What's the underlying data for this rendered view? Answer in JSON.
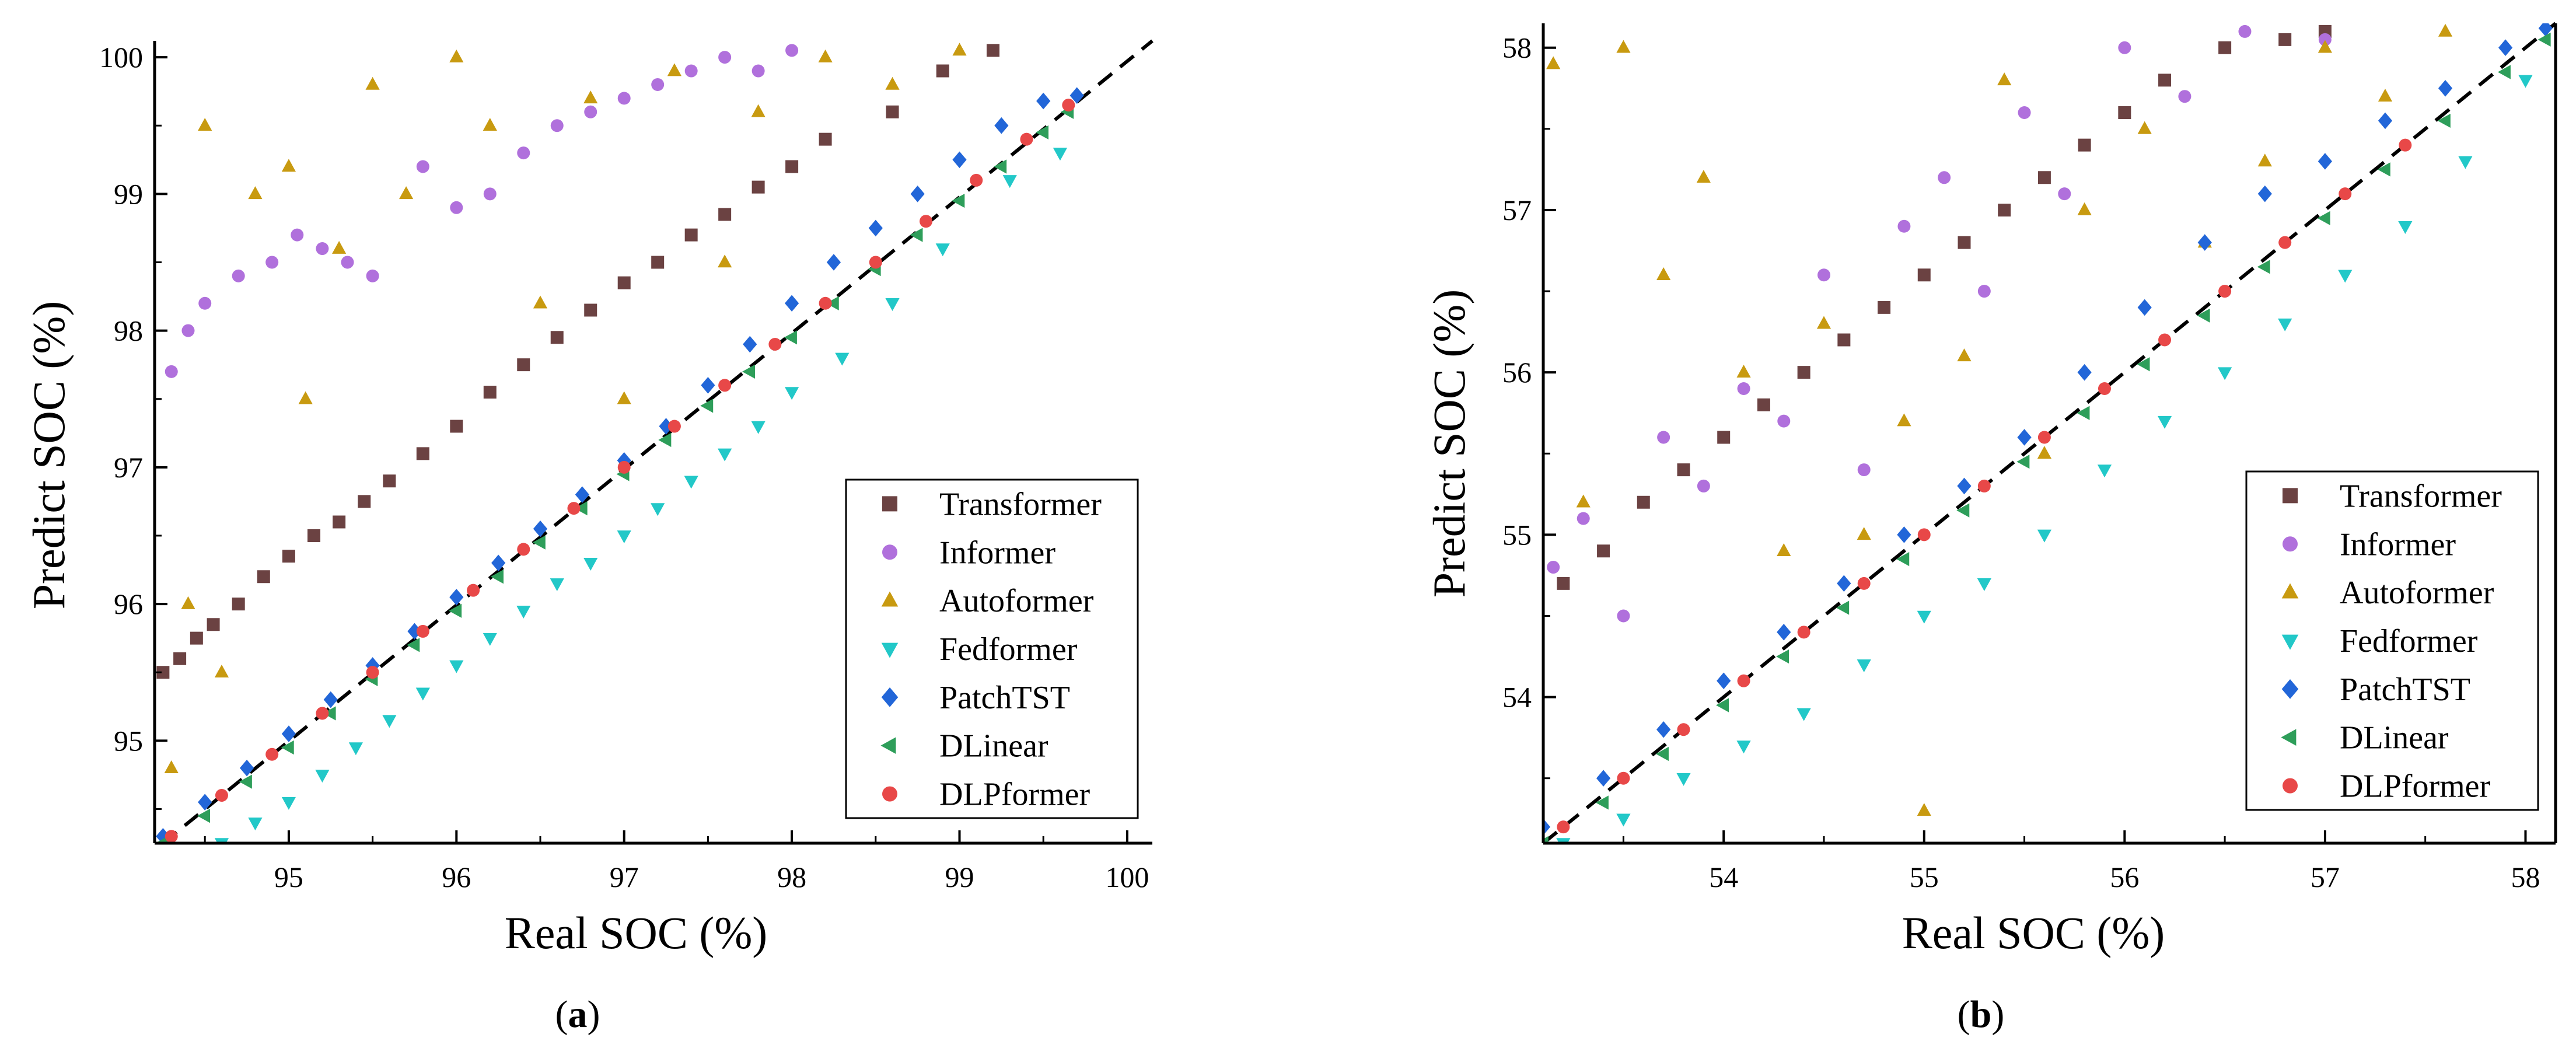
{
  "chart_data": [
    {
      "type": "scatter",
      "panel_label_open": "(",
      "panel_label_letter": "a",
      "panel_label_close": ")",
      "xlabel": "Real SOC (%)",
      "ylabel": "Predict SOC (%)",
      "xlim": [
        94.2,
        100.15
      ],
      "ylim": [
        94.25,
        100.12
      ],
      "xticks": [
        95,
        96,
        97,
        98,
        99,
        100
      ],
      "yticks": [
        95,
        96,
        97,
        98,
        99,
        100
      ],
      "xtick_labels": [
        "95",
        "96",
        "97",
        "98",
        "99",
        "100"
      ],
      "ytick_labels": [
        "95",
        "96",
        "97",
        "98",
        "99",
        "100"
      ],
      "reference_line": "y = x (dashed)",
      "legend_position": "bottom-right",
      "series": [
        {
          "name": "Transformer",
          "marker": "square",
          "color": "#6B4242",
          "x": [
            94.25,
            94.35,
            94.45,
            94.55,
            94.7,
            94.85,
            95.0,
            95.15,
            95.3,
            95.45,
            95.6,
            95.8,
            96.0,
            96.2,
            96.4,
            96.6,
            96.8,
            97.0,
            97.2,
            97.4,
            97.6,
            97.8,
            98.0,
            98.2,
            98.6,
            98.9,
            99.2
          ],
          "y": [
            95.5,
            95.6,
            95.75,
            95.85,
            96.0,
            96.2,
            96.35,
            96.5,
            96.6,
            96.75,
            96.9,
            97.1,
            97.3,
            97.55,
            97.75,
            97.95,
            98.15,
            98.35,
            98.5,
            98.7,
            98.85,
            99.05,
            99.2,
            99.4,
            99.6,
            99.9,
            100.05
          ]
        },
        {
          "name": "Informer",
          "marker": "circle",
          "color": "#B070DC",
          "x": [
            94.3,
            94.4,
            94.5,
            94.7,
            94.9,
            95.05,
            95.2,
            95.35,
            95.5,
            95.8,
            96.0,
            96.2,
            96.4,
            96.6,
            96.8,
            97.0,
            97.2,
            97.4,
            97.6,
            97.8,
            98.0
          ],
          "y": [
            97.7,
            98.0,
            98.2,
            98.4,
            98.5,
            98.7,
            98.6,
            98.5,
            98.4,
            99.2,
            98.9,
            99.0,
            99.3,
            99.5,
            99.6,
            99.7,
            99.8,
            99.9,
            100.0,
            99.9,
            100.05
          ]
        },
        {
          "name": "Autoformer",
          "marker": "triangle-up",
          "color": "#C89A10",
          "x": [
            94.3,
            94.4,
            94.5,
            94.6,
            94.8,
            95.0,
            95.1,
            95.3,
            95.5,
            95.7,
            96.0,
            96.2,
            96.5,
            96.8,
            97.0,
            97.3,
            97.6,
            97.8,
            98.2,
            98.6,
            99.0
          ],
          "y": [
            94.8,
            96.0,
            99.5,
            95.5,
            99.0,
            99.2,
            97.5,
            98.6,
            99.8,
            99.0,
            100.0,
            99.5,
            98.2,
            99.7,
            97.5,
            99.9,
            98.5,
            99.6,
            100.0,
            99.8,
            100.05
          ]
        },
        {
          "name": "Fedformer",
          "marker": "triangle-down",
          "color": "#22C8C8",
          "x": [
            94.6,
            94.8,
            95.0,
            95.2,
            95.4,
            95.6,
            95.8,
            96.0,
            96.2,
            96.4,
            96.6,
            96.8,
            97.0,
            97.2,
            97.4,
            97.6,
            97.8,
            98.0,
            98.3,
            98.6,
            98.9,
            99.3,
            99.6
          ],
          "y": [
            94.25,
            94.4,
            94.55,
            94.75,
            94.95,
            95.15,
            95.35,
            95.55,
            95.75,
            95.95,
            96.15,
            96.3,
            96.5,
            96.7,
            96.9,
            97.1,
            97.3,
            97.55,
            97.8,
            98.2,
            98.6,
            99.1,
            99.3
          ]
        },
        {
          "name": "PatchTST",
          "marker": "diamond",
          "color": "#2266D8",
          "x": [
            94.25,
            94.5,
            94.75,
            95.0,
            95.25,
            95.5,
            95.75,
            96.0,
            96.25,
            96.5,
            96.75,
            97.0,
            97.25,
            97.5,
            97.75,
            98.0,
            98.25,
            98.5,
            98.75,
            99.0,
            99.25,
            99.5,
            99.7
          ],
          "y": [
            94.3,
            94.55,
            94.8,
            95.05,
            95.3,
            95.55,
            95.8,
            96.05,
            96.3,
            96.55,
            96.8,
            97.05,
            97.3,
            97.6,
            97.9,
            98.2,
            98.5,
            98.75,
            99.0,
            99.25,
            99.5,
            99.68,
            99.72
          ]
        },
        {
          "name": "DLinear",
          "marker": "triangle-left",
          "color": "#2E9E5A",
          "x": [
            94.25,
            94.5,
            94.75,
            95.0,
            95.25,
            95.5,
            95.75,
            96.0,
            96.25,
            96.5,
            96.75,
            97.0,
            97.25,
            97.5,
            97.75,
            98.0,
            98.25,
            98.5,
            98.75,
            99.0,
            99.25,
            99.5,
            99.65
          ],
          "y": [
            94.25,
            94.45,
            94.7,
            94.95,
            95.2,
            95.45,
            95.7,
            95.95,
            96.2,
            96.45,
            96.7,
            96.95,
            97.2,
            97.45,
            97.7,
            97.95,
            98.2,
            98.45,
            98.7,
            98.95,
            99.2,
            99.45,
            99.6
          ]
        },
        {
          "name": "DLPformer",
          "marker": "circle",
          "color": "#E84848",
          "x": [
            94.3,
            94.6,
            94.9,
            95.2,
            95.5,
            95.8,
            96.1,
            96.4,
            96.7,
            97.0,
            97.3,
            97.6,
            97.9,
            98.2,
            98.5,
            98.8,
            99.1,
            99.4,
            99.65
          ],
          "y": [
            94.3,
            94.6,
            94.9,
            95.2,
            95.5,
            95.8,
            96.1,
            96.4,
            96.7,
            97.0,
            97.3,
            97.6,
            97.9,
            98.2,
            98.5,
            98.8,
            99.1,
            99.4,
            99.65
          ]
        }
      ]
    },
    {
      "type": "scatter",
      "panel_label_open": "(",
      "panel_label_letter": "b",
      "panel_label_close": ")",
      "xlabel": "Real SOC (%)",
      "ylabel": "Predict SOC (%)",
      "xlim": [
        53.1,
        58.15
      ],
      "ylim": [
        53.1,
        58.15
      ],
      "xticks": [
        54,
        55,
        56,
        57,
        58
      ],
      "yticks": [
        54,
        55,
        56,
        57,
        58
      ],
      "xtick_labels": [
        "54",
        "55",
        "56",
        "57",
        "58"
      ],
      "ytick_labels": [
        "54",
        "55",
        "56",
        "57",
        "58"
      ],
      "reference_line": "y = x (dashed)",
      "legend_position": "bottom-right",
      "series": [
        {
          "name": "Transformer",
          "marker": "square",
          "color": "#6B4242",
          "x": [
            53.2,
            53.4,
            53.6,
            53.8,
            54.0,
            54.2,
            54.4,
            54.6,
            54.8,
            55.0,
            55.2,
            55.4,
            55.6,
            55.8,
            56.0,
            56.2,
            56.5,
            56.8,
            57.0
          ],
          "y": [
            54.7,
            54.9,
            55.2,
            55.4,
            55.6,
            55.8,
            56.0,
            56.2,
            56.4,
            56.6,
            56.8,
            57.0,
            57.2,
            57.4,
            57.6,
            57.8,
            58.0,
            58.05,
            58.1
          ]
        },
        {
          "name": "Informer",
          "marker": "circle",
          "color": "#B070DC",
          "x": [
            53.15,
            53.3,
            53.5,
            53.7,
            53.9,
            54.1,
            54.3,
            54.5,
            54.7,
            54.9,
            55.1,
            55.3,
            55.5,
            55.7,
            56.0,
            56.3,
            56.6,
            57.0
          ],
          "y": [
            54.8,
            55.1,
            54.5,
            55.6,
            55.3,
            55.9,
            55.7,
            56.6,
            55.4,
            56.9,
            57.2,
            56.5,
            57.6,
            57.1,
            58.0,
            57.7,
            58.1,
            58.05
          ]
        },
        {
          "name": "Autoformer",
          "marker": "triangle-up",
          "color": "#C89A10",
          "x": [
            53.15,
            53.3,
            53.5,
            53.7,
            53.9,
            54.1,
            54.3,
            54.5,
            54.7,
            54.9,
            55.0,
            55.2,
            55.4,
            55.6,
            55.8,
            56.1,
            56.4,
            56.7,
            57.0,
            57.3,
            57.6
          ],
          "y": [
            57.9,
            55.2,
            58.0,
            56.6,
            57.2,
            56.0,
            54.9,
            56.3,
            55.0,
            55.7,
            53.3,
            56.1,
            57.8,
            55.5,
            57.0,
            57.5,
            56.8,
            57.3,
            58.0,
            57.7,
            58.1
          ]
        },
        {
          "name": "Fedformer",
          "marker": "triangle-down",
          "color": "#22C8C8",
          "x": [
            53.2,
            53.5,
            53.8,
            54.1,
            54.4,
            54.7,
            55.0,
            55.3,
            55.6,
            55.9,
            56.2,
            56.5,
            56.8,
            57.1,
            57.4,
            57.7,
            58.0
          ],
          "y": [
            53.1,
            53.25,
            53.5,
            53.7,
            53.9,
            54.2,
            54.5,
            54.7,
            55.0,
            55.4,
            55.7,
            56.0,
            56.3,
            56.6,
            56.9,
            57.3,
            57.8
          ]
        },
        {
          "name": "PatchTST",
          "marker": "diamond",
          "color": "#2266D8",
          "x": [
            53.1,
            53.4,
            53.7,
            54.0,
            54.3,
            54.6,
            54.9,
            55.2,
            55.5,
            55.8,
            56.1,
            56.4,
            56.7,
            57.0,
            57.3,
            57.6,
            57.9,
            58.1
          ],
          "y": [
            53.2,
            53.5,
            53.8,
            54.1,
            54.4,
            54.7,
            55.0,
            55.3,
            55.6,
            56.0,
            56.4,
            56.8,
            57.1,
            57.3,
            57.55,
            57.75,
            58.0,
            58.12
          ]
        },
        {
          "name": "DLinear",
          "marker": "triangle-left",
          "color": "#2E9E5A",
          "x": [
            53.1,
            53.4,
            53.7,
            54.0,
            54.3,
            54.6,
            54.9,
            55.2,
            55.5,
            55.8,
            56.1,
            56.4,
            56.7,
            57.0,
            57.3,
            57.6,
            57.9,
            58.1
          ],
          "y": [
            53.1,
            53.35,
            53.65,
            53.95,
            54.25,
            54.55,
            54.85,
            55.15,
            55.45,
            55.75,
            56.05,
            56.35,
            56.65,
            56.95,
            57.25,
            57.55,
            57.85,
            58.05
          ]
        },
        {
          "name": "DLPformer",
          "marker": "circle",
          "color": "#E84848",
          "x": [
            53.2,
            53.5,
            53.8,
            54.1,
            54.4,
            54.7,
            55.0,
            55.3,
            55.6,
            55.9,
            56.2,
            56.5,
            56.8,
            57.1,
            57.4
          ],
          "y": [
            53.2,
            53.5,
            53.8,
            54.1,
            54.4,
            54.7,
            55.0,
            55.3,
            55.6,
            55.9,
            56.2,
            56.5,
            56.8,
            57.1,
            57.4
          ]
        }
      ]
    }
  ]
}
